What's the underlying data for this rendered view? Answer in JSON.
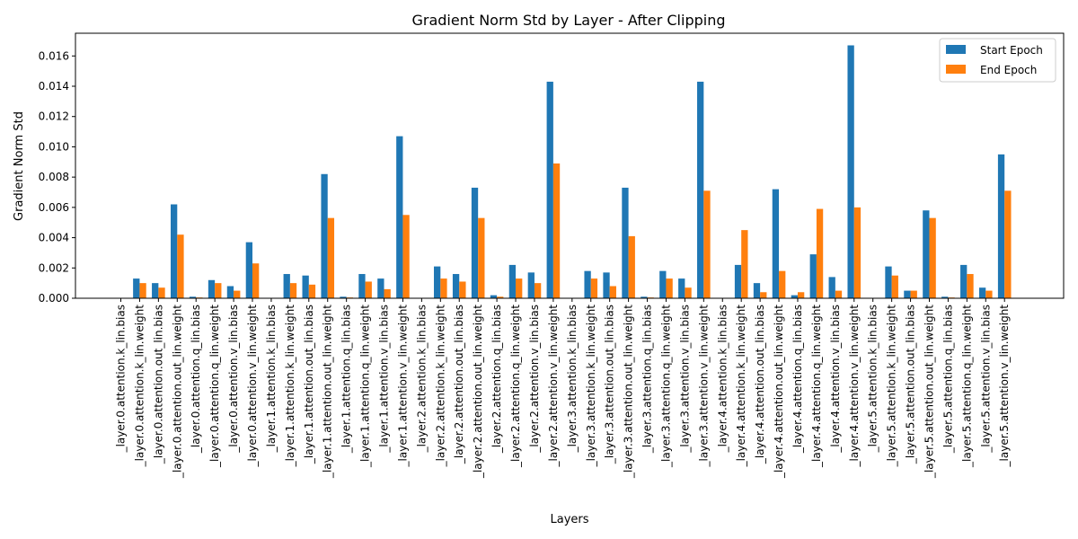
{
  "chart_data": {
    "type": "bar",
    "title": "Gradient Norm Std by Layer - After Clipping",
    "xlabel": "Layers",
    "ylabel": "Gradient Norm Std",
    "ylim": [
      0,
      0.0175
    ],
    "yticks": [
      "0.000",
      "0.002",
      "0.004",
      "0.006",
      "0.008",
      "0.010",
      "0.012",
      "0.014",
      "0.016"
    ],
    "legend_position": "top-right",
    "categories": [
      "_layer.0.attention.k_lin.bias",
      "_layer.0.attention.k_lin.weight",
      "_layer.0.attention.out_lin.bias",
      "_layer.0.attention.out_lin.weight",
      "_layer.0.attention.q_lin.bias",
      "_layer.0.attention.q_lin.weight",
      "_layer.0.attention.v_lin.bias",
      "_layer.0.attention.v_lin.weight",
      "_layer.1.attention.k_lin.bias",
      "_layer.1.attention.k_lin.weight",
      "_layer.1.attention.out_lin.bias",
      "_layer.1.attention.out_lin.weight",
      "_layer.1.attention.q_lin.bias",
      "_layer.1.attention.q_lin.weight",
      "_layer.1.attention.v_lin.bias",
      "_layer.1.attention.v_lin.weight",
      "_layer.2.attention.k_lin.bias",
      "_layer.2.attention.k_lin.weight",
      "_layer.2.attention.out_lin.bias",
      "_layer.2.attention.out_lin.weight",
      "_layer.2.attention.q_lin.bias",
      "_layer.2.attention.q_lin.weight",
      "_layer.2.attention.v_lin.bias",
      "_layer.2.attention.v_lin.weight",
      "_layer.3.attention.k_lin.bias",
      "_layer.3.attention.k_lin.weight",
      "_layer.3.attention.out_lin.bias",
      "_layer.3.attention.out_lin.weight",
      "_layer.3.attention.q_lin.bias",
      "_layer.3.attention.q_lin.weight",
      "_layer.3.attention.v_lin.bias",
      "_layer.3.attention.v_lin.weight",
      "_layer.4.attention.k_lin.bias",
      "_layer.4.attention.k_lin.weight",
      "_layer.4.attention.out_lin.bias",
      "_layer.4.attention.out_lin.weight",
      "_layer.4.attention.q_lin.bias",
      "_layer.4.attention.q_lin.weight",
      "_layer.4.attention.v_lin.bias",
      "_layer.4.attention.v_lin.weight",
      "_layer.5.attention.k_lin.bias",
      "_layer.5.attention.k_lin.weight",
      "_layer.5.attention.out_lin.bias",
      "_layer.5.attention.out_lin.weight",
      "_layer.5.attention.q_lin.bias",
      "_layer.5.attention.q_lin.weight",
      "_layer.5.attention.v_lin.bias",
      "_layer.5.attention.v_lin.weight"
    ],
    "series": [
      {
        "name": "Start Epoch",
        "color": "#1f77b4",
        "values": [
          0.0,
          0.0013,
          0.001,
          0.0062,
          0.0001,
          0.0012,
          0.0008,
          0.0037,
          0.0,
          0.0016,
          0.0015,
          0.0082,
          0.0001,
          0.0016,
          0.0013,
          0.0107,
          0.0,
          0.0021,
          0.0016,
          0.0073,
          0.0002,
          0.0022,
          0.0017,
          0.0143,
          0.0,
          0.0018,
          0.0017,
          0.0073,
          0.0001,
          0.0018,
          0.0013,
          0.0143,
          0.0,
          0.0022,
          0.001,
          0.0072,
          0.0002,
          0.0029,
          0.0014,
          0.0167,
          0.0,
          0.0021,
          0.0005,
          0.0058,
          0.0001,
          0.0022,
          0.0007,
          0.0095
        ]
      },
      {
        "name": "End Epoch",
        "color": "#ff7f0e",
        "values": [
          0.0,
          0.001,
          0.0007,
          0.0042,
          5e-05,
          0.001,
          0.0005,
          0.0023,
          0.0,
          0.001,
          0.0009,
          0.0053,
          5e-05,
          0.0011,
          0.0006,
          0.0055,
          0.0,
          0.0013,
          0.0011,
          0.0053,
          0.0001,
          0.0013,
          0.001,
          0.0089,
          0.0,
          0.0013,
          0.0008,
          0.0041,
          5e-05,
          0.0013,
          0.0007,
          0.0071,
          0.0,
          0.0045,
          0.0004,
          0.0018,
          0.0004,
          0.0059,
          0.0005,
          0.006,
          0.0,
          0.0015,
          0.0005,
          0.0053,
          5e-05,
          0.0016,
          0.0005,
          0.0071
        ]
      }
    ]
  }
}
